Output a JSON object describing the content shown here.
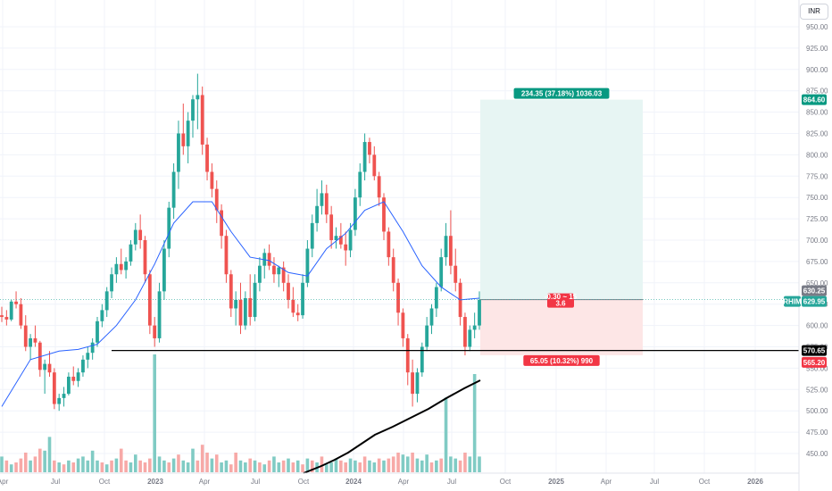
{
  "currency_button": "INR",
  "colors": {
    "up": "#26a69a",
    "down": "#ef5350",
    "vol_up": "#80cbc4",
    "vol_down": "#f7a9a7",
    "ma": "#2962ff",
    "profit_zone": "#e7f5f3",
    "loss_zone": "#fde6e6",
    "grid": "#f0f3fa",
    "axis_text": "#787b86"
  },
  "chart_data": {
    "type": "candlestick",
    "x_tick_labels": [
      "Apr",
      "Jul",
      "Oct",
      "2023",
      "Apr",
      "Jul",
      "Oct",
      "2024",
      "Apr",
      "Jul",
      "Oct",
      "2025",
      "Apr",
      "Jul",
      "Oct",
      "2026"
    ],
    "y_tick_labels": [
      "450.00",
      "475.00",
      "500.00",
      "525.00",
      "550.00",
      "575.00",
      "600.00",
      "625.00",
      "650.00",
      "675.00",
      "700.00",
      "725.00",
      "750.00",
      "775.00",
      "800.00",
      "825.00",
      "850.00",
      "875.00",
      "900.00",
      "925.00",
      "950.00"
    ],
    "ylim": [
      440,
      960
    ],
    "candles_ohlc": [
      [
        612,
        622,
        604,
        610
      ],
      [
        610,
        618,
        600,
        607
      ],
      [
        607,
        630,
        605,
        628
      ],
      [
        628,
        640,
        620,
        625
      ],
      [
        625,
        632,
        596,
        600
      ],
      [
        600,
        612,
        570,
        575
      ],
      [
        575,
        590,
        560,
        585
      ],
      [
        585,
        600,
        575,
        580
      ],
      [
        580,
        582,
        540,
        548
      ],
      [
        548,
        560,
        520,
        555
      ],
      [
        555,
        570,
        540,
        545
      ],
      [
        545,
        550,
        502,
        508
      ],
      [
        508,
        520,
        500,
        515
      ],
      [
        515,
        528,
        505,
        520
      ],
      [
        520,
        545,
        518,
        540
      ],
      [
        540,
        552,
        530,
        535
      ],
      [
        535,
        550,
        528,
        545
      ],
      [
        545,
        565,
        540,
        560
      ],
      [
        560,
        575,
        550,
        568
      ],
      [
        568,
        585,
        560,
        580
      ],
      [
        580,
        610,
        575,
        605
      ],
      [
        605,
        625,
        598,
        618
      ],
      [
        618,
        645,
        610,
        640
      ],
      [
        640,
        668,
        632,
        660
      ],
      [
        660,
        680,
        650,
        672
      ],
      [
        672,
        690,
        660,
        665
      ],
      [
        665,
        680,
        655,
        675
      ],
      [
        675,
        700,
        670,
        695
      ],
      [
        695,
        720,
        688,
        712
      ],
      [
        712,
        730,
        690,
        700
      ],
      [
        700,
        705,
        650,
        660
      ],
      [
        660,
        665,
        590,
        600
      ],
      [
        600,
        610,
        575,
        585
      ],
      [
        585,
        650,
        580,
        640
      ],
      [
        640,
        700,
        630,
        690
      ],
      [
        690,
        745,
        680,
        738
      ],
      [
        738,
        790,
        725,
        780
      ],
      [
        780,
        840,
        760,
        825
      ],
      [
        825,
        860,
        800,
        810
      ],
      [
        810,
        850,
        790,
        840
      ],
      [
        840,
        870,
        820,
        865
      ],
      [
        865,
        895,
        830,
        870
      ],
      [
        870,
        880,
        800,
        812
      ],
      [
        812,
        820,
        770,
        780
      ],
      [
        780,
        790,
        750,
        760
      ],
      [
        760,
        770,
        720,
        735
      ],
      [
        735,
        742,
        690,
        705
      ],
      [
        705,
        712,
        650,
        660
      ],
      [
        660,
        665,
        610,
        620
      ],
      [
        620,
        640,
        600,
        630
      ],
      [
        630,
        650,
        590,
        600
      ],
      [
        600,
        640,
        595,
        632
      ],
      [
        632,
        660,
        600,
        610
      ],
      [
        610,
        660,
        605,
        650
      ],
      [
        650,
        680,
        640,
        670
      ],
      [
        670,
        690,
        655,
        685
      ],
      [
        685,
        695,
        665,
        670
      ],
      [
        670,
        680,
        650,
        660
      ],
      [
        660,
        670,
        645,
        668
      ],
      [
        668,
        675,
        640,
        650
      ],
      [
        650,
        660,
        620,
        630
      ],
      [
        630,
        645,
        610,
        615
      ],
      [
        615,
        625,
        605,
        612
      ],
      [
        612,
        660,
        608,
        650
      ],
      [
        650,
        700,
        645,
        690
      ],
      [
        690,
        730,
        680,
        720
      ],
      [
        720,
        760,
        710,
        740
      ],
      [
        740,
        770,
        730,
        755
      ],
      [
        755,
        765,
        720,
        730
      ],
      [
        730,
        740,
        690,
        700
      ],
      [
        700,
        715,
        690,
        705
      ],
      [
        705,
        720,
        690,
        695
      ],
      [
        695,
        710,
        670,
        688
      ],
      [
        688,
        720,
        680,
        712
      ],
      [
        712,
        760,
        705,
        750
      ],
      [
        750,
        790,
        740,
        780
      ],
      [
        780,
        825,
        770,
        815
      ],
      [
        815,
        820,
        790,
        800
      ],
      [
        800,
        810,
        770,
        775
      ],
      [
        775,
        780,
        740,
        750
      ],
      [
        750,
        755,
        700,
        710
      ],
      [
        710,
        715,
        670,
        680
      ],
      [
        680,
        690,
        640,
        650
      ],
      [
        650,
        655,
        600,
        615
      ],
      [
        615,
        620,
        575,
        585
      ],
      [
        585,
        590,
        530,
        545
      ],
      [
        545,
        560,
        505,
        520
      ],
      [
        520,
        550,
        510,
        545
      ],
      [
        545,
        580,
        540,
        575
      ],
      [
        575,
        610,
        570,
        600
      ],
      [
        600,
        625,
        590,
        620
      ],
      [
        620,
        650,
        610,
        645
      ],
      [
        645,
        690,
        640,
        680
      ],
      [
        680,
        720,
        670,
        705
      ],
      [
        705,
        735,
        660,
        670
      ],
      [
        670,
        690,
        640,
        650
      ],
      [
        650,
        655,
        600,
        610
      ],
      [
        610,
        615,
        565,
        575
      ],
      [
        575,
        600,
        570,
        595
      ],
      [
        595,
        615,
        585,
        600
      ],
      [
        600,
        640,
        595,
        630
      ]
    ],
    "moving_average": [
      [
        0,
        505
      ],
      [
        6,
        560
      ],
      [
        12,
        570
      ],
      [
        16,
        572
      ],
      [
        20,
        578
      ],
      [
        24,
        600
      ],
      [
        28,
        630
      ],
      [
        32,
        672
      ],
      [
        36,
        720
      ],
      [
        40,
        745
      ],
      [
        44,
        745
      ],
      [
        48,
        710
      ],
      [
        52,
        680
      ],
      [
        56,
        676
      ],
      [
        60,
        662
      ],
      [
        64,
        658
      ],
      [
        68,
        690
      ],
      [
        72,
        708
      ],
      [
        76,
        735
      ],
      [
        80,
        745
      ],
      [
        84,
        710
      ],
      [
        88,
        670
      ],
      [
        92,
        645
      ],
      [
        96,
        630
      ],
      [
        100,
        632
      ]
    ],
    "volume": [
      [
        0.4,
        1
      ],
      [
        0.3,
        0
      ],
      [
        0.2,
        1
      ],
      [
        0.25,
        0
      ],
      [
        0.35,
        0
      ],
      [
        0.5,
        0
      ],
      [
        0.3,
        1
      ],
      [
        0.4,
        0
      ],
      [
        0.6,
        0
      ],
      [
        0.55,
        1
      ],
      [
        0.9,
        1
      ],
      [
        0.3,
        0
      ],
      [
        0.25,
        1
      ],
      [
        0.2,
        0
      ],
      [
        0.3,
        1
      ],
      [
        0.25,
        0
      ],
      [
        0.35,
        1
      ],
      [
        0.4,
        1
      ],
      [
        0.3,
        1
      ],
      [
        0.55,
        1
      ],
      [
        0.3,
        1
      ],
      [
        0.25,
        0
      ],
      [
        0.2,
        1
      ],
      [
        0.3,
        0
      ],
      [
        0.35,
        1
      ],
      [
        0.6,
        0
      ],
      [
        0.3,
        0
      ],
      [
        0.25,
        1
      ],
      [
        0.45,
        1
      ],
      [
        0.3,
        0
      ],
      [
        0.25,
        0
      ],
      [
        0.35,
        0
      ],
      [
        3.0,
        1
      ],
      [
        0.4,
        1
      ],
      [
        0.3,
        1
      ],
      [
        0.25,
        0
      ],
      [
        0.35,
        1
      ],
      [
        0.45,
        0
      ],
      [
        0.3,
        1
      ],
      [
        0.25,
        1
      ],
      [
        0.6,
        1
      ],
      [
        0.3,
        0
      ],
      [
        0.7,
        0
      ],
      [
        0.5,
        0
      ],
      [
        0.35,
        1
      ],
      [
        0.45,
        0
      ],
      [
        0.25,
        1
      ],
      [
        0.3,
        1
      ],
      [
        0.2,
        0
      ],
      [
        0.5,
        0
      ],
      [
        0.3,
        1
      ],
      [
        0.25,
        1
      ],
      [
        0.35,
        0
      ],
      [
        0.3,
        1
      ],
      [
        0.25,
        0
      ],
      [
        0.2,
        1
      ],
      [
        0.3,
        0
      ],
      [
        0.4,
        1
      ],
      [
        0.25,
        1
      ],
      [
        0.3,
        0
      ],
      [
        0.35,
        1
      ],
      [
        0.25,
        0
      ],
      [
        0.3,
        1
      ],
      [
        0.2,
        0
      ],
      [
        0.35,
        1
      ],
      [
        0.3,
        0
      ],
      [
        0.25,
        1
      ],
      [
        0.4,
        0
      ],
      [
        0.2,
        1
      ],
      [
        0.25,
        1
      ],
      [
        0.35,
        1
      ],
      [
        0.3,
        0
      ],
      [
        0.25,
        0
      ],
      [
        0.35,
        1
      ],
      [
        0.3,
        1
      ],
      [
        0.25,
        0
      ],
      [
        0.4,
        0
      ],
      [
        0.3,
        1
      ],
      [
        0.25,
        1
      ],
      [
        0.35,
        0
      ],
      [
        0.3,
        1
      ],
      [
        0.35,
        0
      ],
      [
        0.4,
        0
      ],
      [
        0.5,
        0
      ],
      [
        0.45,
        1
      ],
      [
        0.4,
        1
      ],
      [
        0.5,
        0
      ],
      [
        0.35,
        1
      ],
      [
        0.3,
        1
      ],
      [
        0.45,
        1
      ],
      [
        0.25,
        0
      ],
      [
        0.3,
        1
      ],
      [
        0.35,
        0
      ],
      [
        1.9,
        1
      ],
      [
        0.4,
        1
      ],
      [
        0.35,
        1
      ],
      [
        0.3,
        0
      ],
      [
        0.5,
        0
      ],
      [
        0.4,
        1
      ],
      [
        2.5,
        1
      ],
      [
        0.4,
        1
      ]
    ],
    "long_position": {
      "entry": 630.25,
      "target": 864.6,
      "stop": 565.2,
      "target_label": "234.35 (37.18%) 1036.03",
      "stop_label": "65.05 (10.32%) 990",
      "center_label_1": "-0.30 ~ 15",
      "center_label_2": "3.6"
    },
    "support_level": 570.65,
    "price_tags": [
      {
        "label": "864.60",
        "kind": "target"
      },
      {
        "label": "630.25",
        "kind": "entry"
      },
      {
        "label": "629.95",
        "kind": "last"
      },
      {
        "label": "570.65",
        "kind": "support"
      },
      {
        "label": "565.20",
        "kind": "stop"
      }
    ],
    "symbol_tag": "RHIM"
  }
}
